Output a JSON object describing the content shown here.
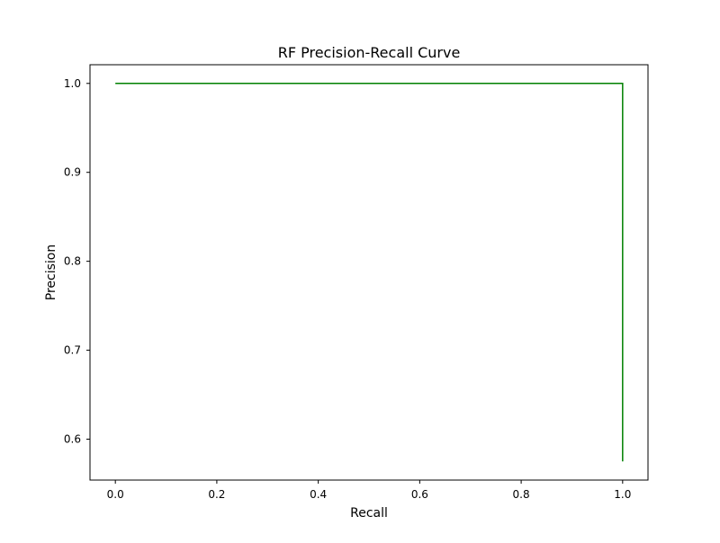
{
  "chart_data": {
    "type": "line",
    "title": "RF Precision-Recall Curve",
    "xlabel": "Recall",
    "ylabel": "Precision",
    "xlim": [
      -0.05,
      1.05
    ],
    "ylim": [
      0.554,
      1.021
    ],
    "xticks": [
      0.0,
      0.2,
      0.4,
      0.6,
      0.8,
      1.0
    ],
    "xtick_labels": [
      "0.0",
      "0.2",
      "0.4",
      "0.6",
      "0.8",
      "1.0"
    ],
    "yticks": [
      0.6,
      0.7,
      0.8,
      0.9,
      1.0
    ],
    "ytick_labels": [
      "0.6",
      "0.7",
      "0.8",
      "0.9",
      "1.0"
    ],
    "grid": false,
    "legend": "none",
    "series": [
      {
        "color": "#008000",
        "x": [
          0.0,
          1.0,
          1.0
        ],
        "y": [
          1.0,
          1.0,
          0.575
        ]
      }
    ]
  }
}
